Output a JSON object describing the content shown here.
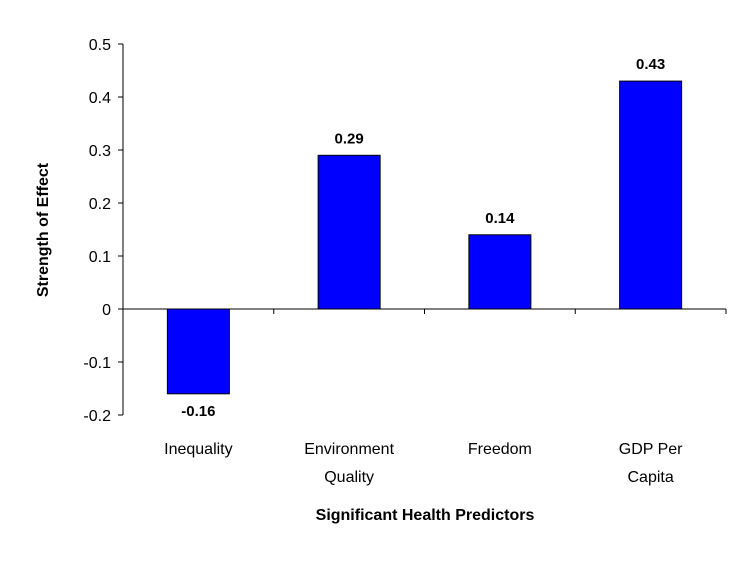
{
  "chart_data": {
    "type": "bar",
    "title": "",
    "xlabel": "Significant Health Predictors",
    "ylabel": "Strength of Effect",
    "categories": [
      [
        "Inequality"
      ],
      [
        "Environment",
        "Quality"
      ],
      [
        "Freedom"
      ],
      [
        "GDP Per",
        "Capita"
      ]
    ],
    "values": [
      -0.16,
      0.29,
      0.14,
      0.43
    ],
    "data_labels": [
      "-0.16",
      "0.29",
      "0.14",
      "0.43"
    ],
    "ylim": [
      -0.2,
      0.5
    ],
    "yticks": [
      -0.2,
      -0.1,
      0,
      0.1,
      0.2,
      0.3,
      0.4,
      0.5
    ],
    "ytick_labels": [
      "-0.2",
      "-0.1",
      "0",
      "0.1",
      "0.2",
      "0.3",
      "0.4",
      "0.5"
    ],
    "grid": false,
    "legend": "none",
    "bar_color": "#0000ff",
    "bar_edge_color": "#000000"
  }
}
